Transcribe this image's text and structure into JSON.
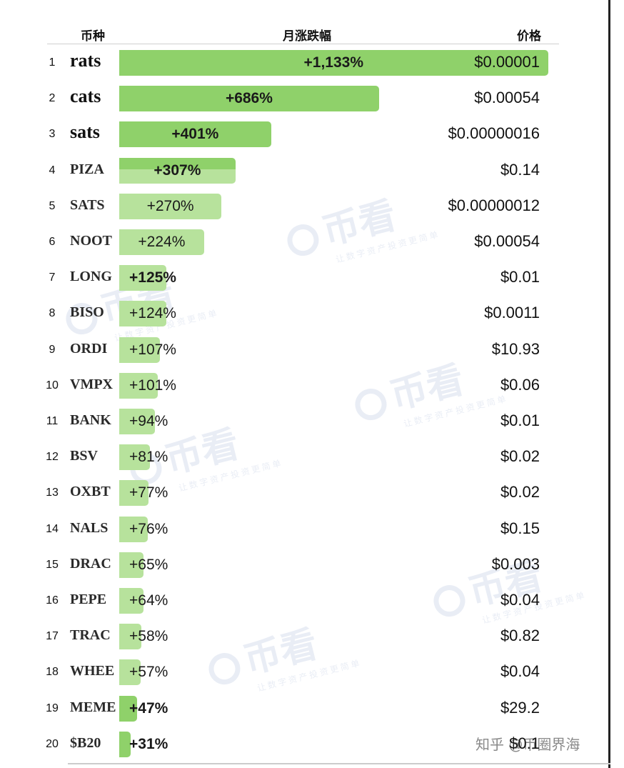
{
  "headers": {
    "coin": "币种",
    "change": "月涨跌幅",
    "price": "价格"
  },
  "colors": {
    "bar_dark": "#8fd16a",
    "bar_light": "#b7e29c"
  },
  "watermark": {
    "logo": "币看",
    "tagline": "让数字资产投资更简单"
  },
  "credit": "知乎 @币圈界海",
  "chart_data": {
    "type": "bar",
    "orientation": "horizontal",
    "categories": [
      "rats",
      "cats",
      "sats",
      "PIZA",
      "SATS",
      "NOOT",
      "LONG",
      "BISO",
      "ORDI",
      "VMPX",
      "BANK",
      "BSV",
      "OXBT",
      "NALS",
      "DRAC",
      "PEPE",
      "TRAC",
      "WHEE",
      "MEME",
      "$B20"
    ],
    "values": [
      1133,
      686,
      401,
      307,
      270,
      224,
      125,
      124,
      107,
      101,
      94,
      81,
      77,
      76,
      65,
      64,
      58,
      57,
      47,
      31
    ],
    "xlim": [
      0,
      1133
    ],
    "rows": [
      {
        "rank": "1",
        "coin": "rats",
        "change": "+1,133%",
        "price": "$0.00001"
      },
      {
        "rank": "2",
        "coin": "cats",
        "change": "+686%",
        "price": "$0.00054"
      },
      {
        "rank": "3",
        "coin": "sats",
        "change": "+401%",
        "price": "$0.00000016"
      },
      {
        "rank": "4",
        "coin": "PIZA",
        "change": "+307%",
        "price": "$0.14"
      },
      {
        "rank": "5",
        "coin": "SATS",
        "change": "+270%",
        "price": "$0.00000012"
      },
      {
        "rank": "6",
        "coin": "NOOT",
        "change": "+224%",
        "price": "$0.00054"
      },
      {
        "rank": "7",
        "coin": "LONG",
        "change": "+125%",
        "price": "$0.01"
      },
      {
        "rank": "8",
        "coin": "BISO",
        "change": "+124%",
        "price": "$0.0011"
      },
      {
        "rank": "9",
        "coin": "ORDI",
        "change": "+107%",
        "price": "$10.93"
      },
      {
        "rank": "10",
        "coin": "VMPX",
        "change": "+101%",
        "price": "$0.06"
      },
      {
        "rank": "11",
        "coin": "BANK",
        "change": "+94%",
        "price": "$0.01"
      },
      {
        "rank": "12",
        "coin": "BSV",
        "change": "+81%",
        "price": "$0.02"
      },
      {
        "rank": "13",
        "coin": "OXBT",
        "change": "+77%",
        "price": "$0.02"
      },
      {
        "rank": "14",
        "coin": "NALS",
        "change": "+76%",
        "price": "$0.15"
      },
      {
        "rank": "15",
        "coin": "DRAC",
        "change": "+65%",
        "price": "$0.003"
      },
      {
        "rank": "16",
        "coin": "PEPE",
        "change": "+64%",
        "price": "$0.04"
      },
      {
        "rank": "17",
        "coin": "TRAC",
        "change": "+58%",
        "price": "$0.82"
      },
      {
        "rank": "18",
        "coin": "WHEE",
        "change": "+57%",
        "price": "$0.04"
      },
      {
        "rank": "19",
        "coin": "MEME",
        "change": "+47%",
        "price": "$29.2"
      },
      {
        "rank": "20",
        "coin": "$B20",
        "change": "+31%",
        "price": "$0.1"
      }
    ]
  }
}
